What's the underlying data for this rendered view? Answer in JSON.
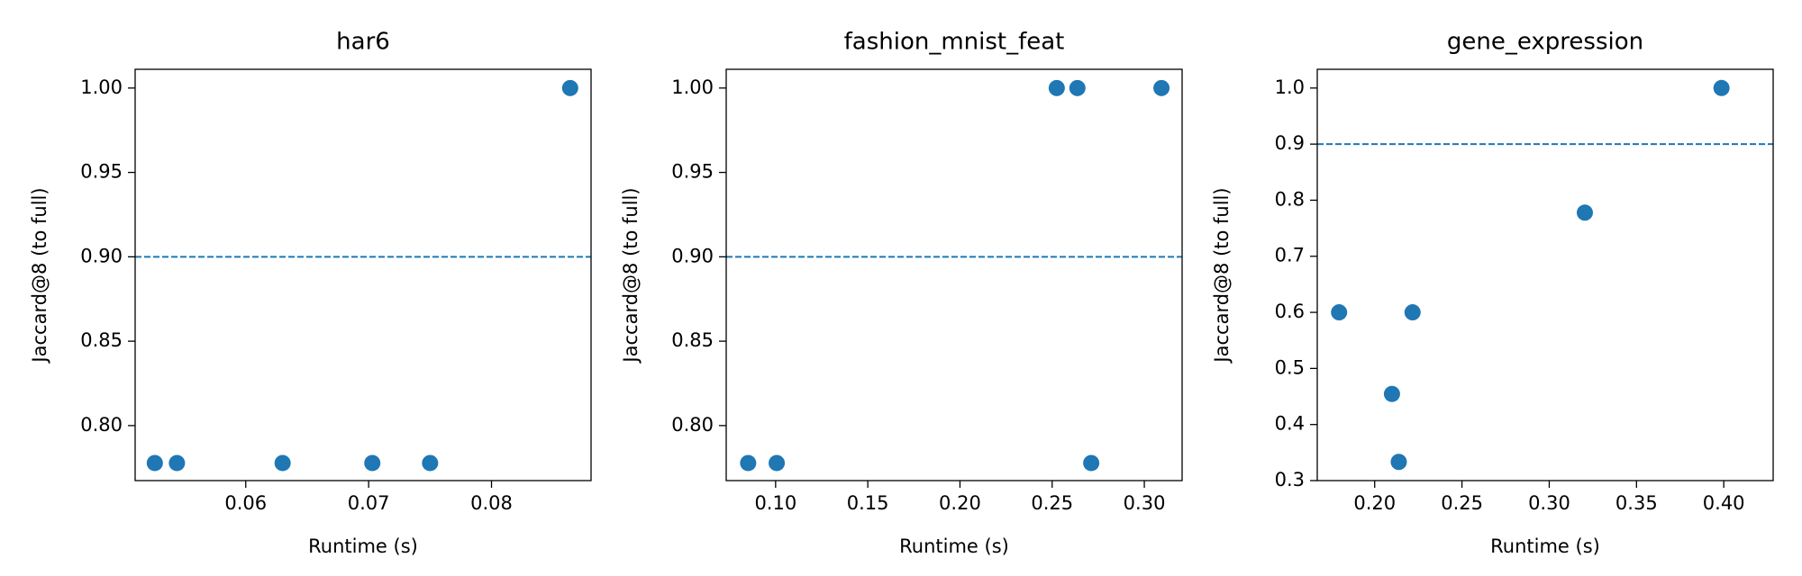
{
  "chart_data": [
    {
      "type": "scatter",
      "title": "har6",
      "x_label": "Runtime (s)",
      "y_label": "Jaccard@8 (to full)",
      "series": [
        {
          "color": "#1f77b4",
          "x": [
            0.0526,
            0.0544,
            0.063,
            0.0703,
            0.075,
            0.0864
          ],
          "values": [
            0.7778,
            0.7778,
            0.7778,
            0.7778,
            0.7778,
            1.0
          ]
        }
      ],
      "xlim": [
        0.051,
        0.0881
      ],
      "ylim": [
        0.7674,
        1.0111
      ],
      "xticks": [
        0.06,
        0.07,
        0.08
      ],
      "yticks": [
        {
          "value": 0.8,
          "label": "0.80"
        },
        {
          "value": 0.85,
          "label": "0.85"
        },
        {
          "value": 0.9,
          "label": "0.90"
        },
        {
          "value": 0.95,
          "label": "0.95"
        },
        {
          "value": 1.0,
          "label": "1.00"
        }
      ],
      "hline": 0.9
    },
    {
      "type": "scatter",
      "title": "fashion_mnist_feat",
      "x_label": "Runtime (s)",
      "y_label": "Jaccard@8 (to full)",
      "series": [
        {
          "color": "#1f77b4",
          "x": [
            0.0851,
            0.1006,
            0.2525,
            0.2637,
            0.2712,
            0.3093
          ],
          "values": [
            0.7778,
            0.7778,
            1.0,
            1.0,
            0.7778,
            1.0
          ]
        }
      ],
      "xlim": [
        0.0732,
        0.3205
      ],
      "ylim": [
        0.7674,
        1.0111
      ],
      "xticks": [
        {
          "value": 0.1,
          "label": "0.10"
        },
        0.15,
        {
          "value": 0.2,
          "label": "0.20"
        },
        0.25,
        {
          "value": 0.3,
          "label": "0.30"
        }
      ],
      "yticks": [
        {
          "value": 0.8,
          "label": "0.80"
        },
        {
          "value": 0.85,
          "label": "0.85"
        },
        {
          "value": 0.9,
          "label": "0.90"
        },
        {
          "value": 0.95,
          "label": "0.95"
        },
        {
          "value": 1.0,
          "label": "1.00"
        }
      ],
      "hline": 0.9
    },
    {
      "type": "scatter",
      "title": "gene_expression",
      "x_label": "Runtime (s)",
      "y_label": "Jaccard@8 (to full)",
      "series": [
        {
          "color": "#1f77b4",
          "x": [
            0.1796,
            0.2099,
            0.2138,
            0.2217,
            0.3204,
            0.3987
          ],
          "values": [
            0.6,
            0.4545,
            0.3333,
            0.6,
            0.7778,
            1.0
          ]
        }
      ],
      "xlim": [
        0.1671,
        0.4283
      ],
      "ylim": [
        0.3,
        1.0334
      ],
      "xticks": [
        {
          "value": 0.2,
          "label": "0.20"
        },
        0.25,
        {
          "value": 0.3,
          "label": "0.30"
        },
        0.35,
        {
          "value": 0.4,
          "label": "0.40"
        }
      ],
      "yticks": [
        0.3,
        0.4,
        0.5,
        0.6,
        0.7,
        0.8,
        0.9,
        {
          "value": 1.0,
          "label": "1.0"
        }
      ],
      "hline": 0.9
    }
  ]
}
